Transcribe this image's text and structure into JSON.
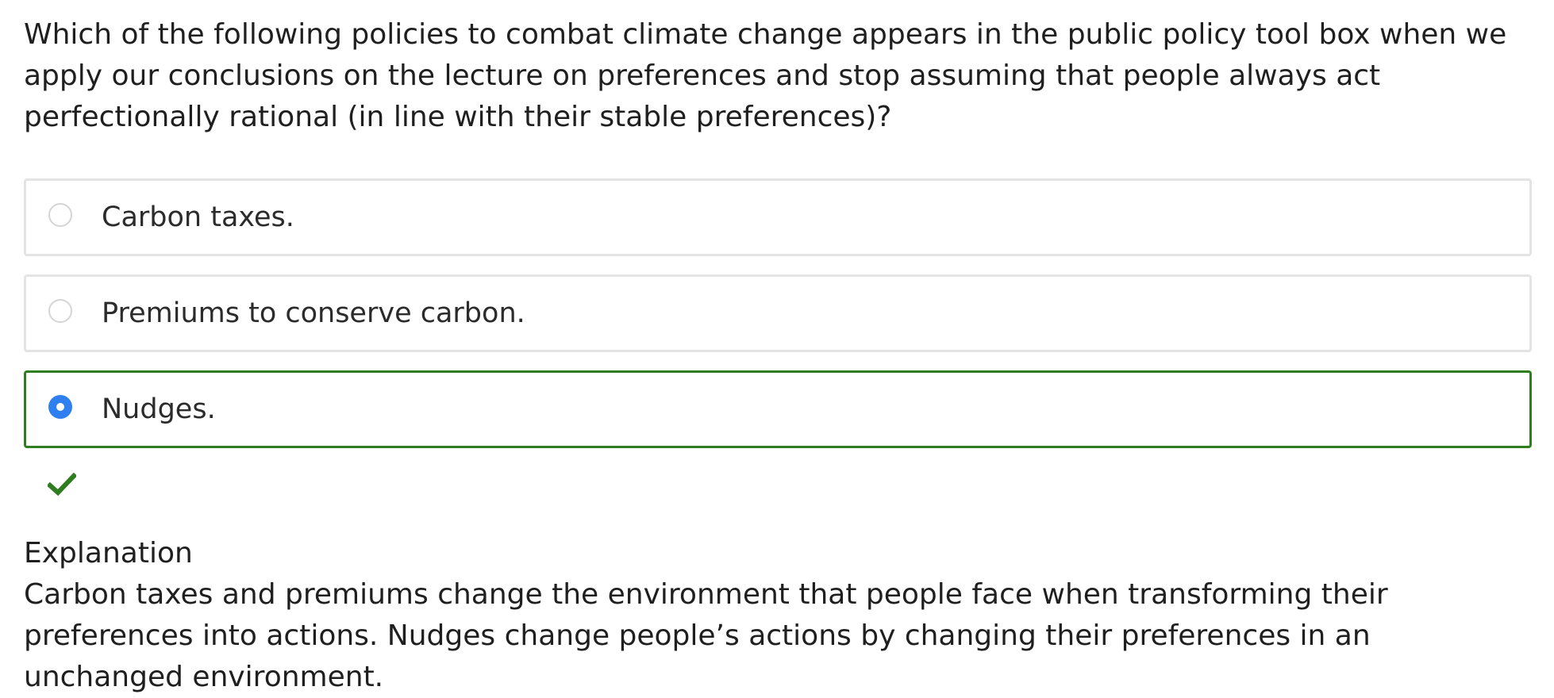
{
  "question": {
    "text": "Which of the following policies to combat climate change appears in the public policy tool box when we apply our conclusions on the lecture on preferences and stop assuming that people always act perfectionally rational (in line with their stable preferences)?"
  },
  "options": [
    {
      "label": "Carbon taxes.",
      "selected": false
    },
    {
      "label": "Premiums to conserve carbon.",
      "selected": false
    },
    {
      "label": "Nudges.",
      "selected": true
    }
  ],
  "feedback": {
    "icon": "checkmark-icon",
    "status": "correct",
    "color": "#2e7d1f"
  },
  "explanation": {
    "heading": "Explanation",
    "text": "Carbon taxes and premiums change the environment that people face when transforming their preferences into actions. Nudges change people’s actions by changing their preferences in an unchanged environment."
  },
  "colors": {
    "selected_border": "#2e7d1f",
    "radio_checked": "#2f7ff0",
    "option_border": "#e4e4e4"
  }
}
